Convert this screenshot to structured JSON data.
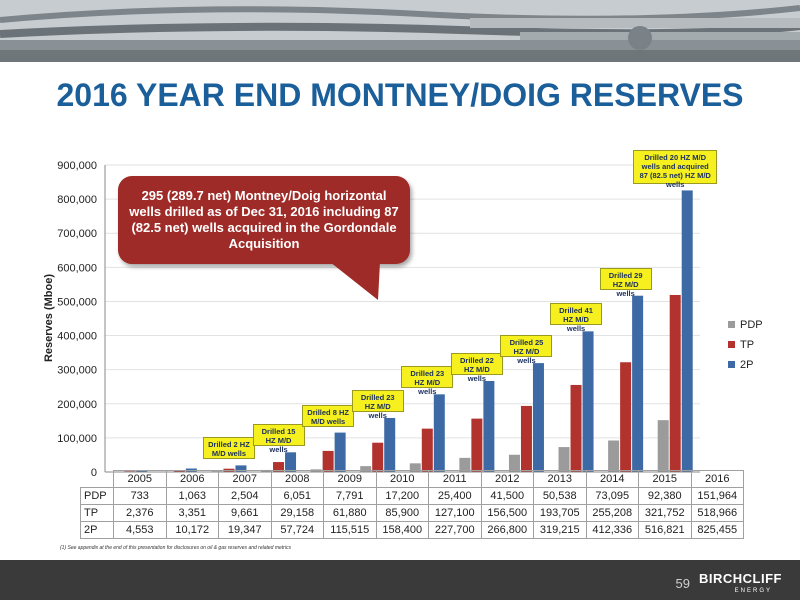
{
  "title": "2016 YEAR END MONTNEY/DOIG RESERVES",
  "callout": "295 (289.7 net) Montney/Doig horizontal wells drilled as of Dec 31, 2016 including 87 (82.5 net) wells acquired in the Gordondale Acquisition",
  "footnote": "(1) See appendix at the end of this presentation for disclosures on oil & gas reserves and related metrics",
  "page_number": "59",
  "brand": {
    "name": "BIRCHCLIFF",
    "sub": "ENERGY"
  },
  "colors": {
    "title": "#1b5f9a",
    "PDP": "#9b9b9b",
    "TP": "#b2322e",
    "2P": "#3d6aa5",
    "callout": "#9e2b27",
    "annotation": "#f5f01e",
    "footer": "#3a3a3a"
  },
  "chart_data": {
    "type": "bar",
    "categories": [
      "2005",
      "2006",
      "2007",
      "2008",
      "2009",
      "2010",
      "2011",
      "2012",
      "2013",
      "2014",
      "2015",
      "2016"
    ],
    "series": [
      {
        "name": "PDP",
        "values": [
          733,
          1063,
          2504,
          6051,
          7791,
          17200,
          25400,
          41500,
          50538,
          73095,
          92380,
          151964
        ],
        "labels": [
          "733",
          "1,063",
          "2,504",
          "6,051",
          "7,791",
          "17,200",
          "25,400",
          "41,500",
          "50,538",
          "73,095",
          "92,380",
          "151,964"
        ]
      },
      {
        "name": "TP",
        "values": [
          2376,
          3351,
          9661,
          29158,
          61880,
          85900,
          127100,
          156500,
          193705,
          255208,
          321752,
          518966
        ],
        "labels": [
          "2,376",
          "3,351",
          "9,661",
          "29,158",
          "61,880",
          "85,900",
          "127,100",
          "156,500",
          "193,705",
          "255,208",
          "321,752",
          "518,966"
        ]
      },
      {
        "name": "2P",
        "values": [
          4553,
          10172,
          19347,
          57724,
          115515,
          158400,
          227700,
          266800,
          319215,
          412336,
          516821,
          825455
        ],
        "labels": [
          "4,553",
          "10,172",
          "19,347",
          "57,724",
          "115,515",
          "158,400",
          "227,700",
          "266,800",
          "319,215",
          "412,336",
          "516,821",
          "825,455"
        ]
      }
    ],
    "ylabel": "Reserves (Mboe)",
    "ylim": [
      0,
      900000
    ],
    "yticks": [
      "0",
      "100,000",
      "200,000",
      "300,000",
      "400,000",
      "500,000",
      "600,000",
      "700,000",
      "800,000",
      "900,000"
    ],
    "legend_position": "right",
    "annotations": [
      {
        "category": "2007",
        "text": "Drilled 2 HZ M/D wells"
      },
      {
        "category": "2008",
        "text": "Drilled 15 HZ M/D wells"
      },
      {
        "category": "2009",
        "text": "Drilled 8 HZ M/D wells"
      },
      {
        "category": "2010",
        "text": "Drilled 23 HZ M/D wells"
      },
      {
        "category": "2011",
        "text": "Drilled 23 HZ M/D wells"
      },
      {
        "category": "2012",
        "text": "Drilled 22 HZ M/D wells"
      },
      {
        "category": "2013",
        "text": "Drilled 25 HZ M/D wells"
      },
      {
        "category": "2014",
        "text": "Drilled 41 HZ M/D wells"
      },
      {
        "category": "2015",
        "text": "Drilled 29 HZ M/D wells"
      },
      {
        "category": "2016",
        "text": "Drilled 20 HZ M/D wells and acquired 87 (82.5 net) HZ M/D wells"
      }
    ]
  }
}
